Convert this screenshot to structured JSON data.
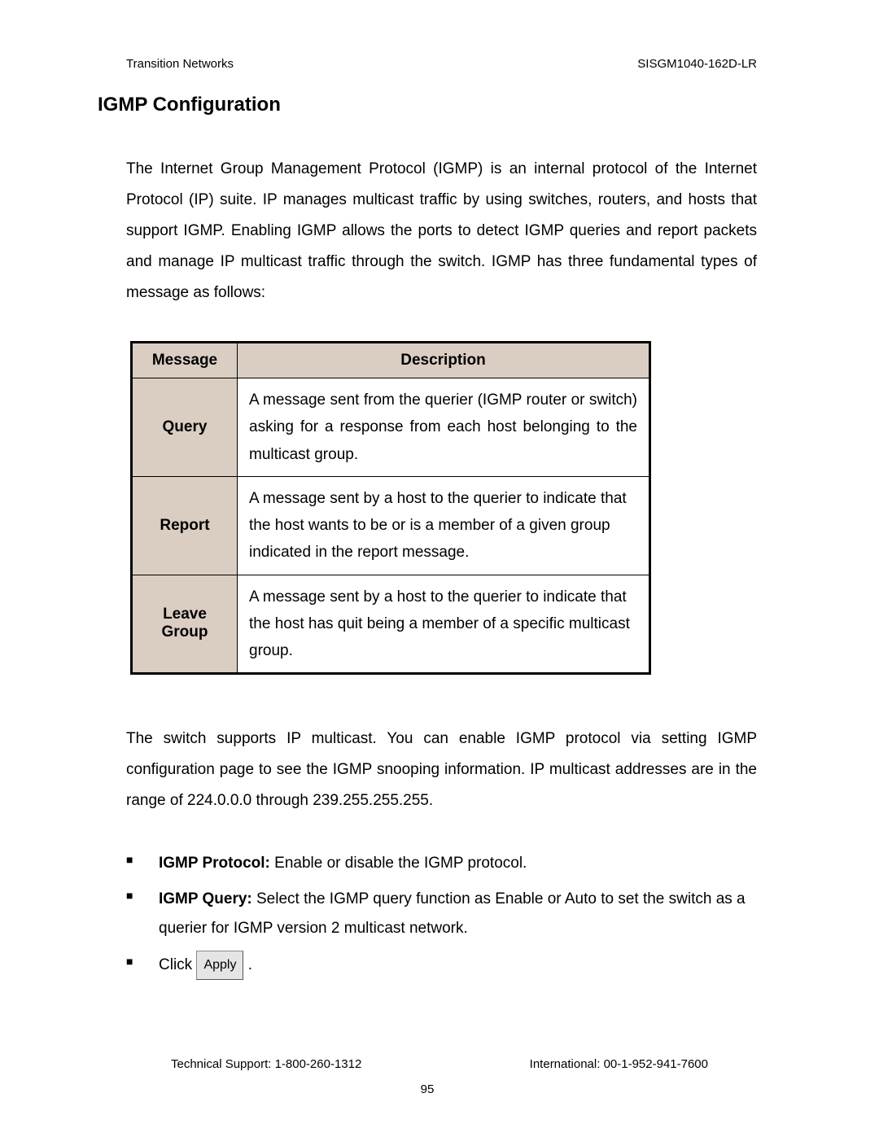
{
  "header": {
    "left": "Transition Networks",
    "right": "SISGM1040-162D-LR"
  },
  "title": "IGMP Configuration",
  "intro": "The Internet Group Management Protocol (IGMP) is an internal protocol of the Internet Protocol (IP) suite. IP manages multicast traffic by using switches, routers, and hosts that support IGMP. Enabling IGMP allows the ports to detect IGMP queries and report packets and manage IP multicast traffic through the switch. IGMP has three fundamental types of message as follows:",
  "table": {
    "headers": {
      "col1": "Message",
      "col2": "Description"
    },
    "rows": [
      {
        "msg": "Query",
        "desc": "A message sent from the querier (IGMP router or switch) asking for a response from each host belonging to the multicast group.",
        "justify": true
      },
      {
        "msg": "Report",
        "desc": "A message sent by a host to the querier to indicate that the host wants to be or is a member of a given group indicated in the report message.",
        "justify": false
      },
      {
        "msg": "Leave Group",
        "desc": "A message sent by a host to the querier to indicate that the host has quit being a member of a specific multicast group.",
        "justify": false
      }
    ]
  },
  "para2": "The switch supports IP multicast. You can enable IGMP protocol via setting IGMP configuration page to see the IGMP snooping information. IP multicast addresses are in the range of 224.0.0.0 through 239.255.255.255.",
  "bullets": {
    "b1_label": "IGMP Protocol:",
    "b1_text": " Enable or disable the IGMP protocol.",
    "b2_label": "IGMP Query:",
    "b2_text": " Select the IGMP query function as Enable or Auto to set the switch as a querier for IGMP version 2 multicast network.",
    "b3_pre": "Click ",
    "b3_btn": "Apply",
    "b3_post": " ."
  },
  "footer": {
    "left": "Technical Support: 1-800-260-1312",
    "right": "International: 00-1-952-941-7600",
    "page": "95"
  }
}
